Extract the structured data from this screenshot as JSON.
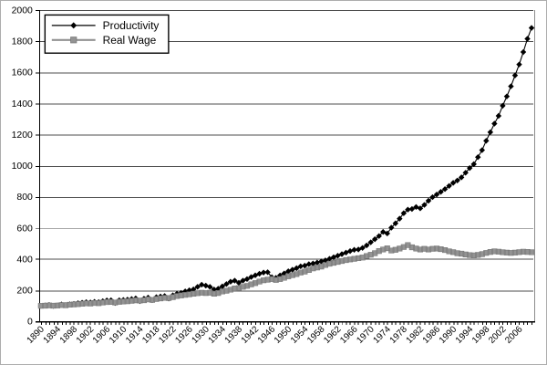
{
  "chart_data": {
    "type": "line",
    "title": "",
    "xlabel": "",
    "ylabel": "",
    "ylim": [
      0,
      2000
    ],
    "y_tick_step": 200,
    "y_tick_labels": [
      "0",
      "200",
      "400",
      "600",
      "800",
      "1000",
      "1200",
      "1400",
      "1600",
      "1800",
      "2000"
    ],
    "x_tick_label_step": 4,
    "x_tick_labels": [
      "1890",
      "1894",
      "1898",
      "1902",
      "1906",
      "1910",
      "1914",
      "1918",
      "1922",
      "1926",
      "1930",
      "1934",
      "1938",
      "1942",
      "1946",
      "1950",
      "1954",
      "1958",
      "1962",
      "1966",
      "1970",
      "1974",
      "1978",
      "1982",
      "1986",
      "1990",
      "1994",
      "1998",
      "2002",
      "2006"
    ],
    "grid": "horizontal",
    "grid_color": "#4d4d4d",
    "axis_color": "#000000",
    "plot_right_border_color": "#8c8c8c",
    "background": "#ffffff",
    "legend": {
      "position": "top-left-inside",
      "background": "#ffffff",
      "border_color": "#000000",
      "entries": [
        "Productivity",
        "Real Wage"
      ]
    },
    "x": [
      1890,
      1891,
      1892,
      1893,
      1894,
      1895,
      1896,
      1897,
      1898,
      1899,
      1900,
      1901,
      1902,
      1903,
      1904,
      1905,
      1906,
      1907,
      1908,
      1909,
      1910,
      1911,
      1912,
      1913,
      1914,
      1915,
      1916,
      1917,
      1918,
      1919,
      1920,
      1921,
      1922,
      1923,
      1924,
      1925,
      1926,
      1927,
      1928,
      1929,
      1930,
      1931,
      1932,
      1933,
      1934,
      1935,
      1936,
      1937,
      1938,
      1939,
      1940,
      1941,
      1942,
      1943,
      1944,
      1945,
      1946,
      1947,
      1948,
      1949,
      1950,
      1951,
      1952,
      1953,
      1954,
      1955,
      1956,
      1957,
      1958,
      1959,
      1960,
      1961,
      1962,
      1963,
      1964,
      1965,
      1966,
      1967,
      1968,
      1969,
      1970,
      1971,
      1972,
      1973,
      1974,
      1975,
      1976,
      1977,
      1978,
      1979,
      1980,
      1981,
      1982,
      1983,
      1984,
      1985,
      1986,
      1987,
      1988,
      1989,
      1990,
      1991,
      1992,
      1993,
      1994,
      1995,
      1996,
      1997,
      1998,
      1999,
      2000,
      2001,
      2002,
      2003,
      2004,
      2005,
      2006,
      2007,
      2008,
      2009
    ],
    "series": [
      {
        "name": "Productivity",
        "color": "#000000",
        "marker": "diamond",
        "line_width": 1.1,
        "values": [
          100,
          103,
          106,
          99,
          103,
          109,
          105,
          110,
          113,
          117,
          120,
          124,
          122,
          126,
          124,
          130,
          135,
          136,
          118,
          136,
          138,
          140,
          144,
          148,
          130,
          146,
          153,
          137,
          156,
          160,
          163,
          147,
          168,
          178,
          183,
          193,
          200,
          206,
          222,
          236,
          230,
          222,
          205,
          210,
          225,
          240,
          255,
          262,
          248,
          262,
          272,
          285,
          296,
          306,
          314,
          316,
          284,
          280,
          295,
          308,
          322,
          332,
          342,
          354,
          358,
          368,
          372,
          378,
          385,
          392,
          402,
          412,
          422,
          432,
          442,
          452,
          460,
          462,
          472,
          488,
          508,
          528,
          548,
          575,
          565,
          602,
          630,
          660,
          695,
          718,
          722,
          735,
          726,
          748,
          775,
          798,
          815,
          832,
          850,
          870,
          890,
          905,
          925,
          955,
          985,
          1010,
          1055,
          1100,
          1160,
          1215,
          1270,
          1320,
          1385,
          1445,
          1510,
          1580,
          1650,
          1730,
          1815,
          1885
        ]
      },
      {
        "name": "Real Wage",
        "color": "#939393",
        "marker": "square",
        "marker_border": "#787878",
        "line_width": 3.6,
        "values": [
          100,
          101,
          103,
          101,
          102,
          105,
          104,
          107,
          109,
          111,
          113,
          116,
          115,
          118,
          117,
          121,
          124,
          125,
          121,
          126,
          128,
          129,
          132,
          135,
          134,
          136,
          141,
          138,
          144,
          148,
          151,
          150,
          156,
          163,
          167,
          170,
          174,
          178,
          181,
          184,
          182,
          184,
          178,
          182,
          192,
          197,
          204,
          212,
          214,
          222,
          228,
          238,
          246,
          256,
          264,
          268,
          272,
          266,
          272,
          280,
          290,
          297,
          304,
          314,
          320,
          330,
          340,
          346,
          352,
          362,
          370,
          376,
          382,
          388,
          394,
          398,
          402,
          406,
          410,
          420,
          428,
          438,
          452,
          462,
          470,
          455,
          460,
          468,
          478,
          490,
          476,
          468,
          462,
          466,
          462,
          466,
          468,
          464,
          458,
          450,
          445,
          438,
          435,
          430,
          426,
          424,
          427,
          432,
          440,
          446,
          450,
          448,
          444,
          442,
          440,
          442,
          445,
          448,
          446,
          444
        ]
      }
    ]
  }
}
